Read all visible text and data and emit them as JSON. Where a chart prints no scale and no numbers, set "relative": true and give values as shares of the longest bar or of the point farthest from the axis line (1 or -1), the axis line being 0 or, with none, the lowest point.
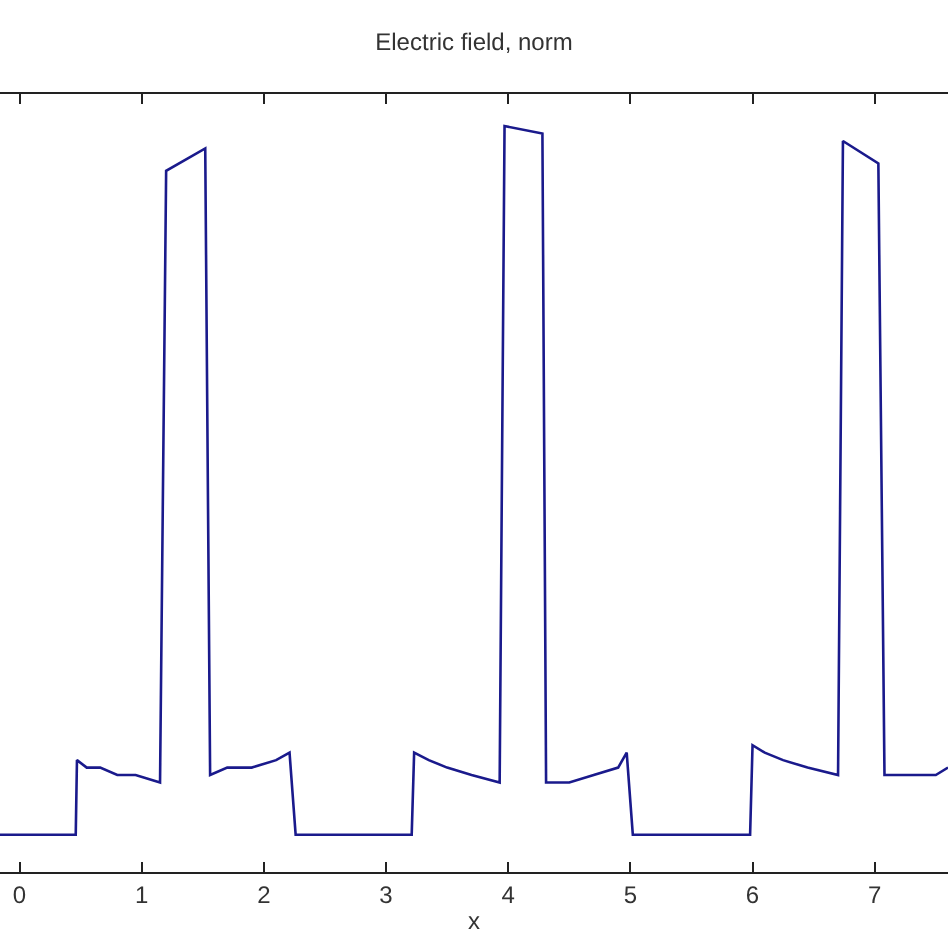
{
  "chart_data": {
    "type": "line",
    "title": "Electric field, norm",
    "xlabel": "x",
    "relative": true,
    "xlim": [
      -0.16,
      7.6
    ],
    "xticks": [
      0,
      1,
      2,
      3,
      4,
      5,
      6,
      7
    ],
    "legend": false,
    "marker": "none",
    "line_style": "solid",
    "tick_labels": "x",
    "series": [
      {
        "color": "#1a1a8c",
        "x": [
          -0.16,
          0.46,
          0.47,
          0.55,
          0.66,
          0.8,
          0.95,
          1.15,
          1.2,
          1.52,
          1.56,
          1.7,
          1.9,
          2.1,
          2.21,
          2.26,
          3.21,
          3.23,
          3.35,
          3.5,
          3.7,
          3.93,
          3.97,
          4.28,
          4.31,
          4.5,
          4.7,
          4.9,
          4.97,
          5.02,
          5.98,
          6.0,
          6.1,
          6.25,
          6.45,
          6.7,
          6.74,
          7.03,
          7.08,
          7.3,
          7.5,
          7.6
        ],
        "values": [
          0.05,
          0.05,
          0.15,
          0.14,
          0.14,
          0.13,
          0.13,
          0.12,
          0.94,
          0.97,
          0.13,
          0.14,
          0.14,
          0.15,
          0.16,
          0.05,
          0.05,
          0.16,
          0.15,
          0.14,
          0.13,
          0.12,
          1.0,
          0.99,
          0.12,
          0.12,
          0.13,
          0.14,
          0.16,
          0.05,
          0.05,
          0.17,
          0.16,
          0.15,
          0.14,
          0.13,
          0.98,
          0.95,
          0.13,
          0.13,
          0.13,
          0.14
        ]
      }
    ]
  }
}
